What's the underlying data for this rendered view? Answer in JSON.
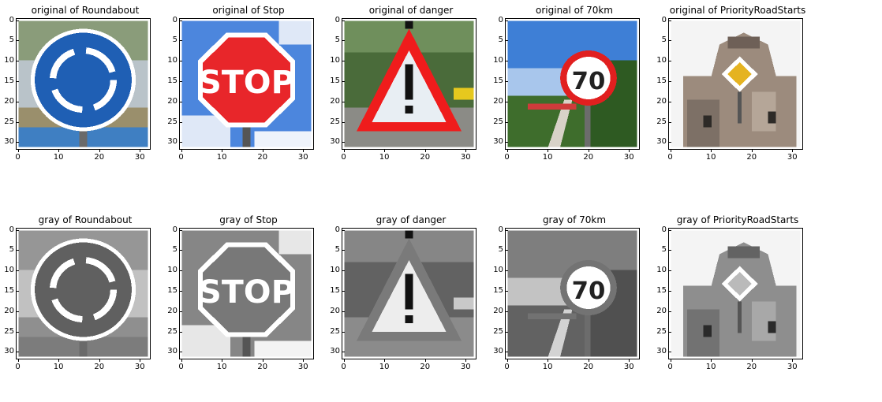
{
  "panels": [
    {
      "title": "original of Roundabout",
      "sign": "roundabout",
      "mode": "color"
    },
    {
      "title": "original of Stop",
      "sign": "stop",
      "mode": "color"
    },
    {
      "title": "original of danger",
      "sign": "danger",
      "mode": "color"
    },
    {
      "title": "original of 70km",
      "sign": "speed70",
      "mode": "color"
    },
    {
      "title": "original of PriorityRoadStarts",
      "sign": "priority",
      "mode": "color"
    },
    {
      "title": "gray of Roundabout",
      "sign": "roundabout",
      "mode": "gray"
    },
    {
      "title": "gray of Stop",
      "sign": "stop",
      "mode": "gray"
    },
    {
      "title": "gray of danger",
      "sign": "danger",
      "mode": "gray"
    },
    {
      "title": "gray of 70km",
      "sign": "speed70",
      "mode": "gray"
    },
    {
      "title": "gray of PriorityRoadStarts",
      "sign": "priority",
      "mode": "gray"
    }
  ],
  "axes": {
    "y_ticks": [
      "0",
      "5",
      "10",
      "15",
      "20",
      "25",
      "30"
    ],
    "x_ticks": [
      "0",
      "10",
      "20",
      "30"
    ]
  },
  "stop_text": "STOP",
  "speed_text": "70"
}
